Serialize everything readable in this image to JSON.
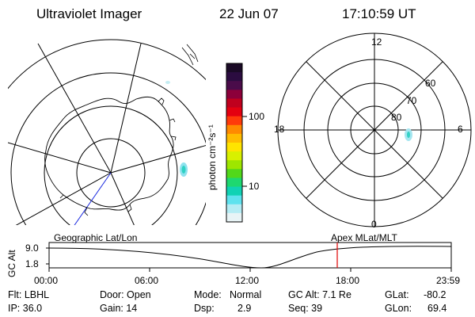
{
  "header": {
    "instrument": "Ultraviolet Imager",
    "date": "22 Jun 07",
    "time": "17:10:59 UT"
  },
  "colorbar": {
    "unit_label": "photon cm⁻²s⁻¹",
    "tick_labels": [
      "100",
      "10"
    ],
    "colors": [
      "#1a0a26",
      "#2b0c40",
      "#4a0c4a",
      "#8c003a",
      "#c0001e",
      "#e40010",
      "#ff3a0a",
      "#ff8a00",
      "#ffbc00",
      "#ffe400",
      "#d8f000",
      "#9ee600",
      "#52d81a",
      "#1ed870",
      "#10d2b4",
      "#5ee2ee",
      "#b4ecf4",
      "#e8f4f6"
    ]
  },
  "left_panel": {
    "caption": "Geographic Lat/Lon"
  },
  "right_panel": {
    "caption": "Apex MLat/MLT",
    "mlt_labels": {
      "top": "12",
      "bottom": "0",
      "left": "18",
      "right": "6"
    },
    "lat_labels": [
      "60",
      "70",
      "80"
    ]
  },
  "altitude_plot": {
    "ylabel": "GC Alt",
    "y_ticks": [
      "9.0",
      "1.8"
    ],
    "x_ticks": [
      "00:00",
      "06:00",
      "12:00",
      "18:00",
      "23:59"
    ],
    "marker_color": "#e00000",
    "marker_time": "17:10:59"
  },
  "info": {
    "filter": "Flt: LBHL",
    "ip": "IP: 36.0",
    "door": "Door: Open",
    "gain": "Gain: 14",
    "mode_label": "Mode:",
    "mode_value": "Normal",
    "dsp_label": "Dsp:",
    "dsp_value": "2.9",
    "gc_alt": "GC Alt: 7.1 Re",
    "seq": "Seq: 39",
    "glat_label": "GLat:",
    "glat_value": "-80.2",
    "glon_label": "GLon:",
    "glon_value": "69.4"
  }
}
